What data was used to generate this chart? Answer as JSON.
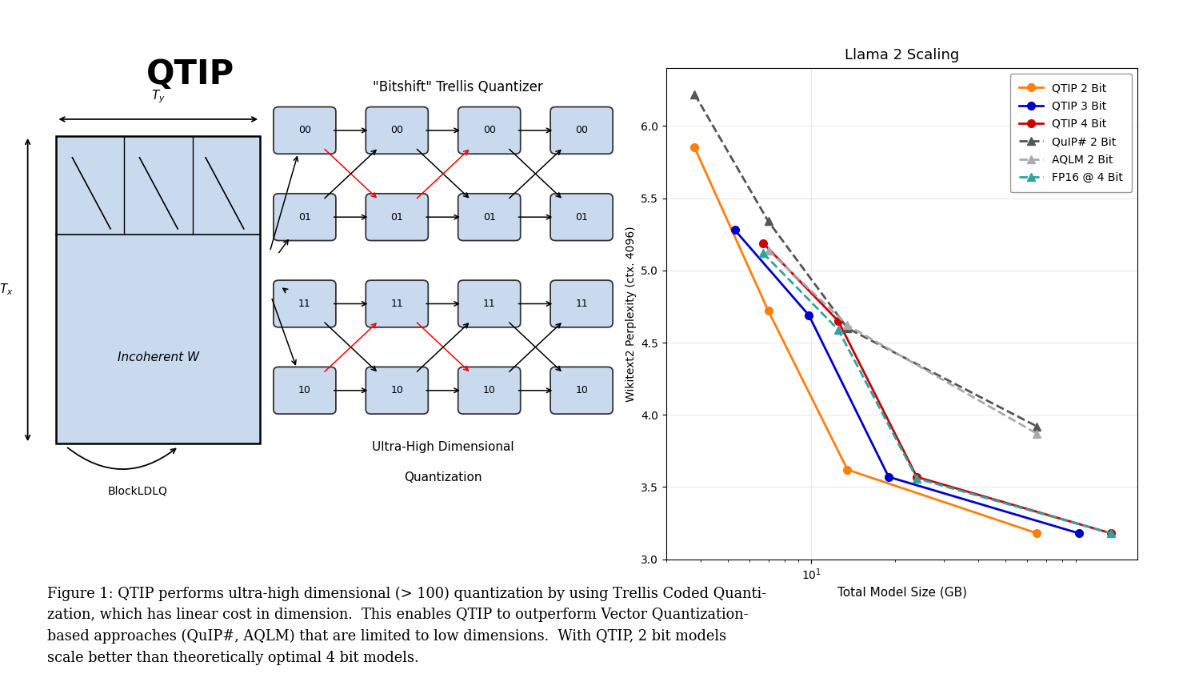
{
  "title": "QTIP",
  "chart_title": "Llama 2 Scaling",
  "xlabel": "Total Model Size (GB)",
  "ylabel": "Wikitext2 Perplexity (ctx. 4096)",
  "series": [
    {
      "label": "QTIP 2 Bit",
      "color": "#ff7f0e",
      "marker": "o",
      "linestyle": "-",
      "x": [
        3.8,
        7.0,
        13.5,
        65.0
      ],
      "y": [
        5.85,
        4.72,
        3.62,
        3.18
      ]
    },
    {
      "label": "QTIP 3 Bit",
      "color": "#0000cc",
      "marker": "o",
      "linestyle": "-",
      "x": [
        5.3,
        9.8,
        19.0,
        92.0
      ],
      "y": [
        5.28,
        4.69,
        3.57,
        3.18
      ]
    },
    {
      "label": "QTIP 4 Bit",
      "color": "#cc0000",
      "marker": "o",
      "linestyle": "-",
      "x": [
        6.7,
        12.5,
        24.0,
        120.0
      ],
      "y": [
        5.19,
        4.65,
        3.57,
        3.18
      ]
    },
    {
      "label": "QuIP# 2 Bit",
      "color": "#555555",
      "marker": "^",
      "linestyle": "--",
      "x": [
        3.8,
        7.0,
        13.5,
        65.0
      ],
      "y": [
        6.22,
        5.34,
        4.6,
        3.92
      ]
    },
    {
      "label": "AQLM 2 Bit",
      "color": "#aaaaaa",
      "marker": "^",
      "linestyle": "--",
      "x": [
        7.0,
        13.5,
        65.0
      ],
      "y": [
        5.14,
        4.62,
        3.87
      ]
    },
    {
      "label": "FP16 @ 4 Bit",
      "color": "#2ca4a0",
      "marker": "^",
      "linestyle": "--",
      "x": [
        6.7,
        12.5,
        24.0,
        120.0
      ],
      "y": [
        5.12,
        4.59,
        3.56,
        3.18
      ]
    }
  ],
  "xlim": [
    3.0,
    150.0
  ],
  "ylim": [
    3.0,
    6.4
  ],
  "caption_line1": "Figure 1: QTIP performs ultra-high dimensional (> 100) quantization by using Trellis Coded Quanti-",
  "caption_line2": "zation, which has linear cost in dimension.  This enables QTIP to outperform Vector Quantization-",
  "caption_line3": "based approaches (QuIP#, AQLM) that are limited to low dimensions.  With QTIP, 2 bit models",
  "caption_line4": "scale better than theoretically optimal 4 bit models.",
  "bg_color": "#ffffff",
  "diagram_bg": "#c9d9ee",
  "node_labels": [
    "00",
    "01",
    "11",
    "10"
  ],
  "trellis_title": "\"Bitshift\" Trellis Quantizer",
  "trellis_subtitle_1": "Ultra-High Dimensional",
  "trellis_subtitle_2": "Quantization",
  "matrix_label": "Incoherent W",
  "blockldlq_label": "BlockLDLQ"
}
